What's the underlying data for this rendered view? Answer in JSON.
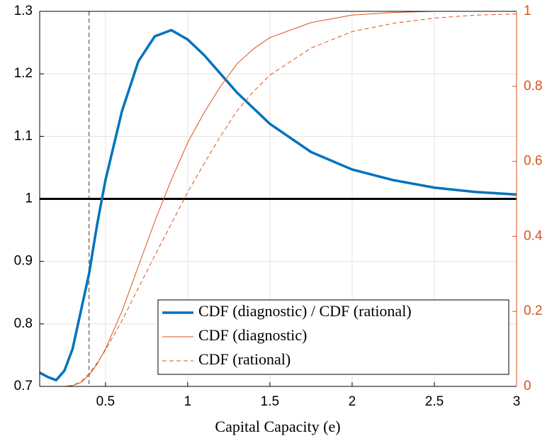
{
  "chart_data": {
    "type": "line",
    "xlabel": "Capital Capacity (e)",
    "x": [
      0.1,
      0.15,
      0.2,
      0.25,
      0.3,
      0.35,
      0.4,
      0.45,
      0.5,
      0.6,
      0.7,
      0.8,
      0.9,
      1.0,
      1.1,
      1.2,
      1.3,
      1.4,
      1.5,
      1.75,
      2.0,
      2.25,
      2.5,
      2.75,
      3.0
    ],
    "series": [
      {
        "name": "CDF (diagnostic) / CDF (rational)",
        "color": "#0072bd",
        "linewidth": 3.5,
        "linestyle": "solid",
        "values": [
          0.722,
          0.715,
          0.71,
          0.725,
          0.76,
          0.82,
          0.88,
          0.96,
          1.03,
          1.14,
          1.22,
          1.26,
          1.27,
          1.255,
          1.23,
          1.2,
          1.17,
          1.145,
          1.12,
          1.075,
          1.047,
          1.03,
          1.018,
          1.011,
          1.007
        ]
      },
      {
        "name": "CDF (diagnostic)",
        "color": "#d95319",
        "linewidth": 1,
        "linestyle": "solid",
        "axis": "y2",
        "values": [
          0,
          0,
          0,
          0,
          0.002,
          0.01,
          0.03,
          0.06,
          0.1,
          0.2,
          0.32,
          0.44,
          0.55,
          0.65,
          0.73,
          0.8,
          0.86,
          0.9,
          0.93,
          0.97,
          0.99,
          0.997,
          1,
          1,
          1
        ]
      },
      {
        "name": "CDF (rational)",
        "color": "#d95319",
        "linewidth": 1,
        "linestyle": "dashed",
        "axis": "y2",
        "values": [
          0,
          0,
          0,
          0,
          0.003,
          0.012,
          0.034,
          0.063,
          0.097,
          0.175,
          0.262,
          0.349,
          0.433,
          0.518,
          0.594,
          0.667,
          0.735,
          0.786,
          0.83,
          0.902,
          0.946,
          0.968,
          0.982,
          0.99,
          0.993
        ]
      }
    ],
    "xlim": [
      0.1,
      3
    ],
    "xticks": [
      0.5,
      1,
      1.5,
      2,
      2.5,
      3
    ],
    "ylim": [
      0.7,
      1.3
    ],
    "yticks": [
      0.7,
      0.8,
      0.9,
      1,
      1.1,
      1.2,
      1.3
    ],
    "y2lim": [
      0,
      1
    ],
    "y2ticks": [
      0,
      0.2,
      0.4,
      0.6,
      0.8,
      1
    ],
    "y2color": "#d95319",
    "hline": 1,
    "vline": 0.4,
    "grid": true,
    "legend": "lower right"
  }
}
